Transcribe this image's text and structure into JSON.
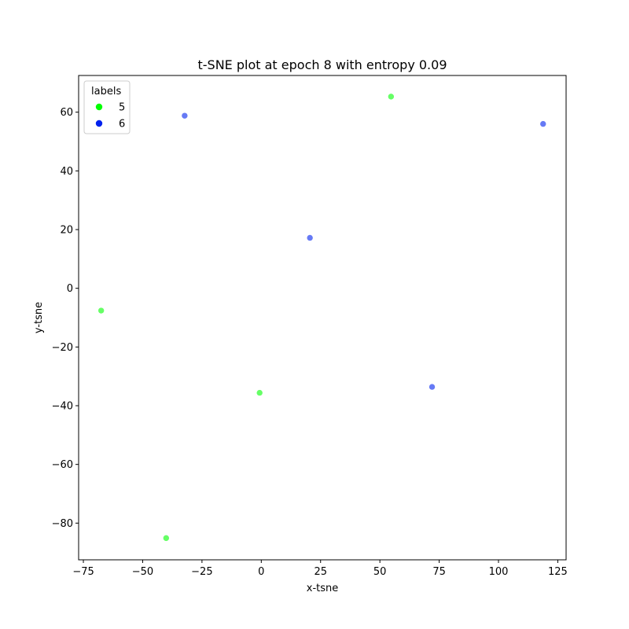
{
  "chart_data": {
    "type": "scatter",
    "title": "t-SNE plot at epoch 8 with entropy 0.09",
    "xlabel": "x-tsne",
    "ylabel": "y-tsne",
    "xlim": [
      -77,
      128.5
    ],
    "ylim": [
      -92.5,
      72.5
    ],
    "xticks": [
      -75,
      -50,
      -25,
      0,
      25,
      50,
      75,
      100,
      125
    ],
    "yticks": [
      -80,
      -60,
      -40,
      -20,
      0,
      20,
      40,
      60
    ],
    "grid": false,
    "legend": {
      "title": "labels",
      "placement": "top-left"
    },
    "series": [
      {
        "name": "5",
        "color": "#00ff00",
        "points": [
          {
            "x": 54.7,
            "y": 65.3
          },
          {
            "x": -67.5,
            "y": -7.6
          },
          {
            "x": -0.7,
            "y": -35.6
          },
          {
            "x": -40.1,
            "y": -85.1
          }
        ]
      },
      {
        "name": "6",
        "color": "#0022ee",
        "points": [
          {
            "x": -32.3,
            "y": 58.8
          },
          {
            "x": 118.8,
            "y": 56.0
          },
          {
            "x": 20.5,
            "y": 17.2
          },
          {
            "x": 72.0,
            "y": -33.6
          }
        ]
      }
    ]
  }
}
